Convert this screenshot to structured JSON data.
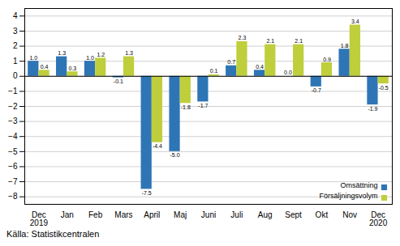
{
  "chart_data": {
    "type": "bar",
    "categories": [
      "Dec\n2019",
      "Jan",
      "Feb",
      "Mars",
      "April",
      "Maj",
      "Juni",
      "Juli",
      "Aug",
      "Sept",
      "Okt",
      "Nov",
      "Dec\n2020"
    ],
    "series": [
      {
        "name": "Omsättning",
        "color": "#2E75B6",
        "values": [
          1.0,
          1.3,
          1.0,
          -0.1,
          -7.5,
          -5.0,
          -1.7,
          0.7,
          0.4,
          0.0,
          -0.7,
          1.8,
          -1.9
        ],
        "value_labels": [
          "1.0",
          "1.3",
          "1.0",
          "-0.1",
          "-7.5",
          "-5.0",
          "-1.7",
          "0.7",
          "0.4",
          "0.0",
          "-0.7",
          "1.8",
          "-1.9"
        ]
      },
      {
        "name": "Försäljningsvolym",
        "color": "#BFCE3B",
        "values": [
          0.4,
          0.3,
          1.2,
          1.3,
          -4.4,
          -1.8,
          0.1,
          2.3,
          2.1,
          2.1,
          0.9,
          3.4,
          -0.5
        ],
        "value_labels": [
          "0.4",
          "0.3",
          "1.2",
          "1.3",
          "-4.4",
          "-1.8",
          "0.1",
          "2.3",
          "2.1",
          "2.1",
          "0.9",
          "3.4",
          "-0.5"
        ]
      }
    ],
    "ylim": [
      -8.5,
      4.5
    ],
    "yticks": [
      -8,
      -7,
      -6,
      -5,
      -4,
      -3,
      -2,
      -1,
      0,
      1,
      2,
      3,
      4
    ],
    "grid": true,
    "legend": "lower right",
    "data_labels": true,
    "source": "Källa: Statistikcentralen"
  }
}
